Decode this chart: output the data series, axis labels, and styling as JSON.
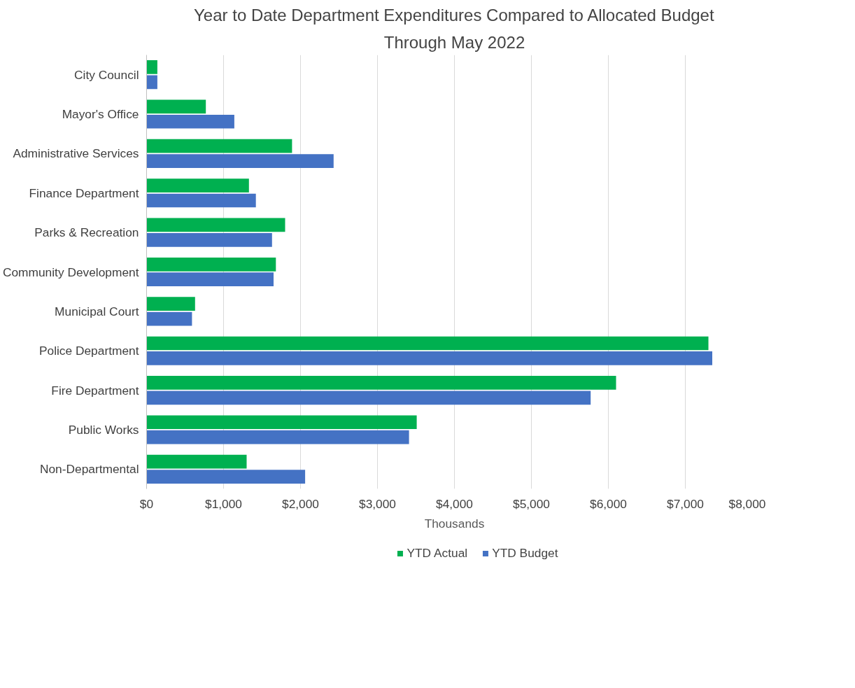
{
  "chart_data": {
    "type": "bar",
    "orientation": "horizontal",
    "title": "Year to Date Department Expenditures Compared to Allocated Budget",
    "subtitle": "Through May 2022",
    "xlabel": "Thousands",
    "categories": [
      "City Council",
      "Mayor's Office",
      "Administrative Services",
      "Finance Department",
      "Parks & Recreation",
      "Community Development",
      "Municipal Court",
      "Police Department",
      "Fire Department",
      "Public Works",
      "Non-Departmental"
    ],
    "series": [
      {
        "name": "YTD Actual",
        "color": "#00b050",
        "values": [
          140,
          770,
          1890,
          1330,
          1800,
          1680,
          630,
          7300,
          6100,
          3510,
          1300
        ]
      },
      {
        "name": "YTD Budget",
        "color": "#4472c4",
        "values": [
          140,
          1140,
          2430,
          1420,
          1630,
          1650,
          590,
          7350,
          5770,
          3410,
          2060
        ]
      }
    ],
    "xlim": [
      0,
      8000
    ],
    "xticks": [
      {
        "value": 0,
        "label": "$0"
      },
      {
        "value": 1000,
        "label": "$1,000"
      },
      {
        "value": 2000,
        "label": "$2,000"
      },
      {
        "value": 3000,
        "label": "$3,000"
      },
      {
        "value": 4000,
        "label": "$4,000"
      },
      {
        "value": 5000,
        "label": "$5,000"
      },
      {
        "value": 6000,
        "label": "$6,000"
      },
      {
        "value": 7000,
        "label": "$7,000"
      },
      {
        "value": 8000,
        "label": "$8,000"
      }
    ],
    "grid": "x",
    "legend": "bottom"
  }
}
